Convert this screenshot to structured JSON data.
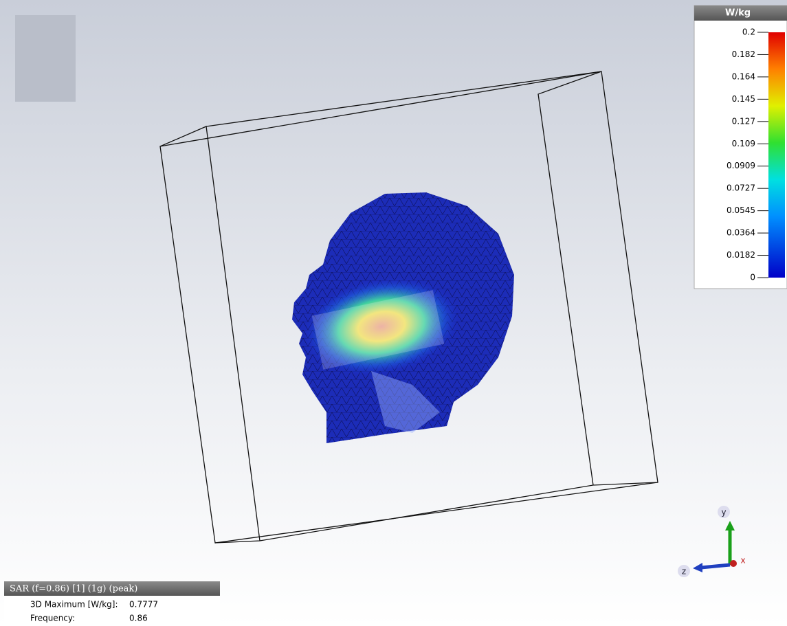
{
  "colorbar": {
    "title": "W/kg",
    "labels": [
      "0.2",
      "0.182",
      "0.164",
      "0.145",
      "0.127",
      "0.109",
      "0.0909",
      "0.0727",
      "0.0545",
      "0.0364",
      "0.0182",
      "0"
    ]
  },
  "result_panel": {
    "title": "SAR (f=0.86) [1] (1g) (peak)",
    "rows": [
      [
        "3D Maximum [W/kg]:",
        "0.7777"
      ],
      [
        "Frequency:",
        "0.86"
      ]
    ]
  },
  "axes": {
    "x": "x",
    "y": "y",
    "z": "z"
  }
}
